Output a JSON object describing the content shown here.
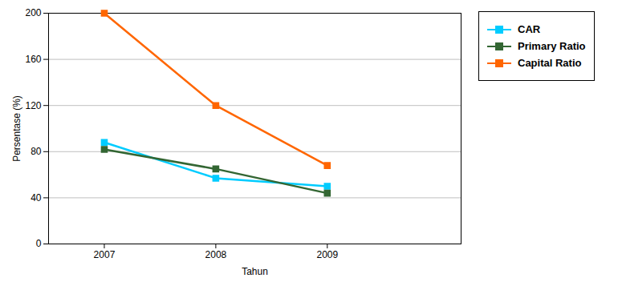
{
  "chart_data": {
    "type": "line",
    "x": [
      2007,
      2008,
      2009
    ],
    "series": [
      {
        "name": "CAR",
        "color": "#00CCFF",
        "values": [
          88,
          57,
          50
        ]
      },
      {
        "name": "Primary Ratio",
        "color": "#336633",
        "values": [
          82,
          65,
          44
        ]
      },
      {
        "name": "Capital Ratio",
        "color": "#FF6600",
        "values": [
          200,
          120,
          68
        ]
      }
    ],
    "xlabel": "Tahun",
    "ylabel": "Persentase (%)",
    "xlim": [
      2006.5,
      2010.2
    ],
    "xticks": [
      2007,
      2008,
      2009
    ],
    "ylim": [
      0,
      200
    ],
    "yticks": [
      0,
      40,
      80,
      120,
      160,
      200
    ],
    "grid": true,
    "legend": "right",
    "marker": "square"
  }
}
